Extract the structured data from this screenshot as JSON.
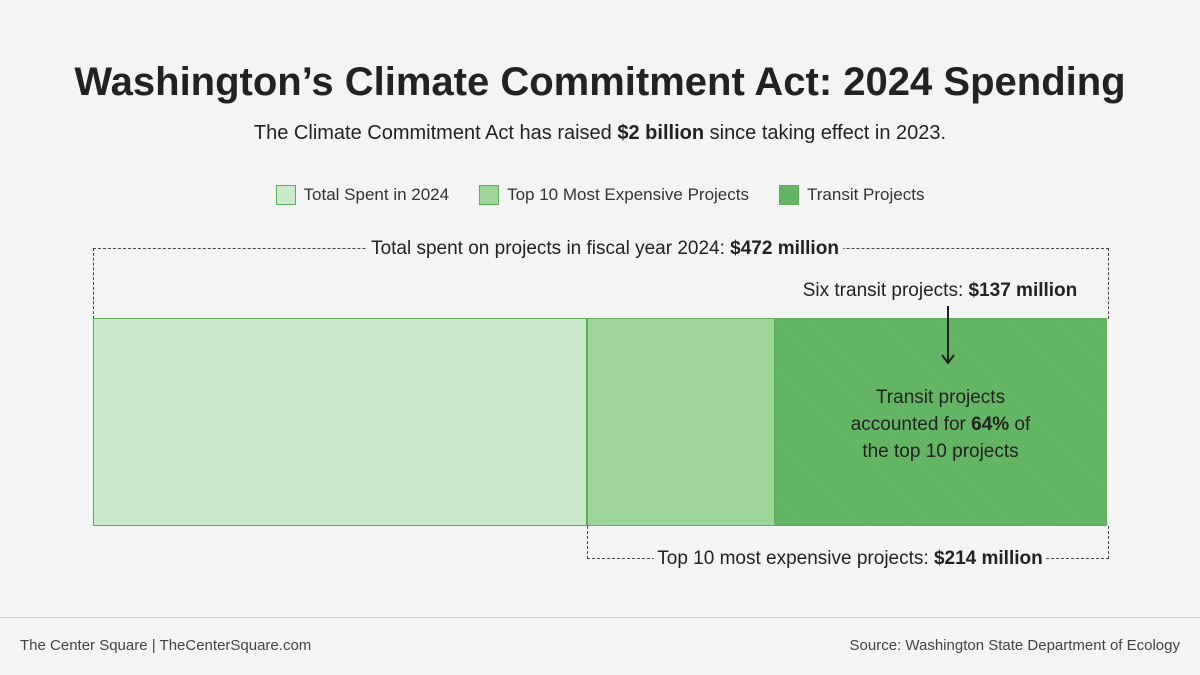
{
  "title": "Washington’s Climate Commitment Act: 2024 Spending",
  "subtitle": {
    "pre": "The Climate Commitment Act has raised ",
    "bold": "$2 billion",
    "post": " since taking effect in 2023."
  },
  "legend": [
    {
      "label": "Total Spent in 2024",
      "color": "#cbe9cb"
    },
    {
      "label": "Top 10 Most Expensive Projects",
      "color": "#9dd49a"
    },
    {
      "label": "Transit Projects",
      "color": "#5fb35f"
    }
  ],
  "annotations": {
    "total": {
      "pre": "Total spent on projects in fiscal year 2024: ",
      "bold": "$472 million"
    },
    "transit": {
      "pre": "Six transit projects: ",
      "bold": "$137 million"
    },
    "top10": {
      "pre": "Top 10 most expensive projects: ",
      "bold": "$214 million"
    },
    "note": {
      "line1": "Transit projects",
      "line2_pre": "accounted for ",
      "line2_bold": "64%",
      "line2_post": " of",
      "line3": "the top 10 projects"
    }
  },
  "footer": {
    "left": "The Center Square | TheCenterSquare.com",
    "right": "Source: Washington State Department of Ecology"
  },
  "chart_data": {
    "type": "bar",
    "orientation": "horizontal-stacked",
    "title": "Washington’s Climate Commitment Act: 2024 Spending",
    "units": "million USD",
    "categories": [
      "Total Spent in 2024",
      "Top 10 Most Expensive Projects",
      "Transit Projects"
    ],
    "values": [
      472,
      214,
      137
    ],
    "transit_share_of_top10_percent": 64
  }
}
